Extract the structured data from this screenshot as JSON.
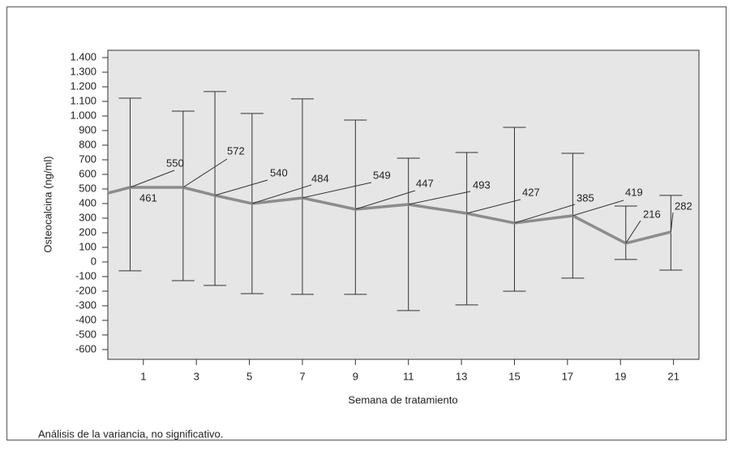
{
  "chart_data": {
    "type": "line",
    "ylabel": "Osteocalcina (ng/ml)",
    "xlabel": "Semana de tratamiento",
    "footnote": "Análisis de la variancia, no significativo.",
    "x": [
      -0.34,
      0.5,
      2.5,
      3.7,
      5.1,
      7,
      9,
      11,
      13.2,
      15,
      17.2,
      19.2,
      20.9
    ],
    "series": [
      {
        "color": "#8c8c8c",
        "values": [
          472,
          511,
          511,
          456,
          400,
          439,
          361,
          394,
          333,
          267,
          317,
          128,
          206
        ],
        "err_high": [
          null,
          1122,
          1033,
          1167,
          1017,
          1117,
          972,
          711,
          750,
          922,
          744,
          383,
          456
        ],
        "err_low": [
          null,
          -61,
          -128,
          -161,
          -217,
          -222,
          -222,
          -333,
          -294,
          -200,
          -111,
          17,
          -56
        ]
      }
    ],
    "annotations": [
      "461",
      "550",
      "572",
      "540",
      "484",
      "549",
      "447",
      "493",
      "427",
      "385",
      "419",
      "216",
      "282"
    ],
    "xlim": [
      -0.34,
      21.96
    ],
    "xticks": [
      1,
      3,
      5,
      7,
      9,
      11,
      13,
      15,
      17,
      19,
      21
    ],
    "ylim": [
      -667,
      1450
    ],
    "yticks": [
      -600,
      -500,
      -400,
      -300,
      -200,
      -100,
      0,
      100,
      200,
      300,
      400,
      500,
      600,
      700,
      800,
      900,
      {
        "value": 1000,
        "label": "1.000"
      },
      {
        "value": 1100,
        "label": "1.100"
      },
      {
        "value": 1200,
        "label": "1.200"
      },
      {
        "value": 1300,
        "label": "1.300"
      },
      {
        "value": 1400,
        "label": "1.400"
      }
    ],
    "background": "#e6e6e6"
  }
}
